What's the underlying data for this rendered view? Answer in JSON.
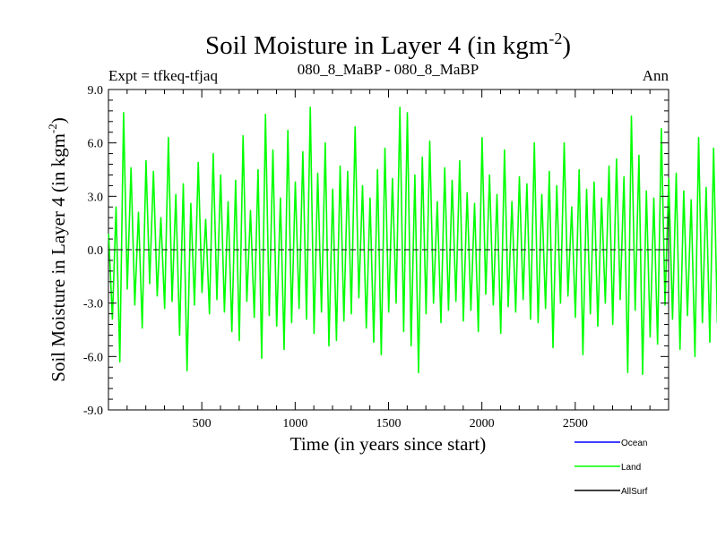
{
  "chart_data": {
    "type": "line",
    "title": "Soil Moisture in Layer 4 (in kgm",
    "title_sup": "-2",
    "title_close": ")",
    "subtitle_left": "Expt = tfkeq-tfjaq",
    "subtitle_center": "080_8_MaBP - 080_8_MaBP",
    "subtitle_right": "Ann",
    "xlabel": "Time (in years since start)",
    "ylabel": "Soil Moisture in Layer 4 (in kgm",
    "ylabel_sup": "-2",
    "ylabel_close": ")",
    "xlim": [
      0,
      3000
    ],
    "ylim": [
      -9,
      9
    ],
    "x_ticks": [
      500,
      1000,
      1500,
      2000,
      2500
    ],
    "x_tick_labels": [
      "500",
      "1000",
      "1500",
      "2000",
      "2500"
    ],
    "y_ticks": [
      -9,
      -6,
      -3,
      0,
      3,
      6,
      9
    ],
    "y_tick_labels": [
      "-9.0",
      "-6.0",
      "-3.0",
      "0.0",
      "3.0",
      "6.0",
      "9.0"
    ],
    "zero_line": "dashed",
    "legend_position": "bottom-right",
    "series": [
      {
        "name": "Ocean",
        "color": "#0000ff",
        "x": [],
        "values": []
      },
      {
        "name": "Land",
        "color": "#00ff00",
        "x_start": 1,
        "x_step": 20,
        "values": [
          0.9,
          -3.9,
          2.4,
          -6.3,
          7.7,
          -2.2,
          4.6,
          -3.1,
          2.1,
          -4.4,
          5.0,
          -1.9,
          4.4,
          -2.6,
          1.8,
          -3.3,
          6.3,
          -2.9,
          3.1,
          -4.8,
          3.7,
          -6.8,
          2.6,
          -3.1,
          4.9,
          -2.4,
          1.7,
          -3.6,
          5.4,
          -2.8,
          4.2,
          -3.5,
          2.7,
          -4.6,
          3.9,
          -5.1,
          6.4,
          -2.9,
          2.2,
          -3.8,
          4.5,
          -6.1,
          7.6,
          -3.7,
          5.6,
          -4.3,
          2.9,
          -5.6,
          6.7,
          -4.1,
          3.8,
          -3.3,
          5.5,
          -3.9,
          8.0,
          -4.7,
          4.3,
          -3.5,
          6.0,
          -5.4,
          3.4,
          -5.1,
          4.7,
          -4.0,
          4.4,
          -3.6,
          6.9,
          -2.7,
          3.6,
          -4.4,
          2.9,
          -5.2,
          4.5,
          -5.9,
          5.7,
          -3.5,
          4.0,
          -3.0,
          8.0,
          -4.6,
          7.7,
          -5.4,
          4.2,
          -6.9,
          5.2,
          -3.6,
          6.1,
          -3.0,
          2.7,
          -4.1,
          4.6,
          -3.4,
          3.9,
          -2.9,
          5.0,
          -4.0,
          3.2,
          -3.4,
          2.6,
          -4.6,
          6.3,
          -2.5,
          4.2,
          -3.1,
          3.1,
          -4.7,
          5.6,
          -3.2,
          2.7,
          -3.5,
          4.1,
          -2.8,
          3.7,
          -3.9,
          6.0,
          -4.1,
          3.1,
          -3.3,
          4.4,
          -5.5,
          3.6,
          -3.0,
          6.0,
          -2.6,
          2.4,
          -3.8,
          4.5,
          -5.9,
          3.4,
          -3.6,
          3.8,
          -4.3,
          2.9,
          -3.0,
          4.7,
          -4.2,
          5.1,
          -2.8,
          4.1,
          -6.9,
          7.5,
          -3.4,
          5.3,
          -7.0,
          3.3,
          -4.9,
          2.9,
          -5.3,
          6.8,
          -3.1,
          4.0,
          -3.9,
          4.3,
          -5.6,
          3.3,
          -3.7,
          2.8,
          -6.0,
          6.3,
          -4.1,
          3.5,
          -5.2,
          5.7,
          -4.1,
          5.6,
          -3.7,
          4.3,
          -4.9,
          2.9,
          -3.2,
          6.2,
          -4.3,
          4.4,
          -3.5,
          2.6,
          -5.2,
          5.6,
          -4.1,
          7.6,
          -4.0,
          3.7,
          -4.6,
          5.2,
          -3.1,
          3.9,
          -5.3,
          3.0,
          -6.9,
          4.6,
          -2.8,
          4.7,
          -5.1,
          5.2,
          -3.4,
          3.1,
          -4.0,
          2.8,
          -5.7
        ]
      },
      {
        "name": "AllSurf",
        "color": "#000000",
        "x": [],
        "values": []
      }
    ]
  }
}
